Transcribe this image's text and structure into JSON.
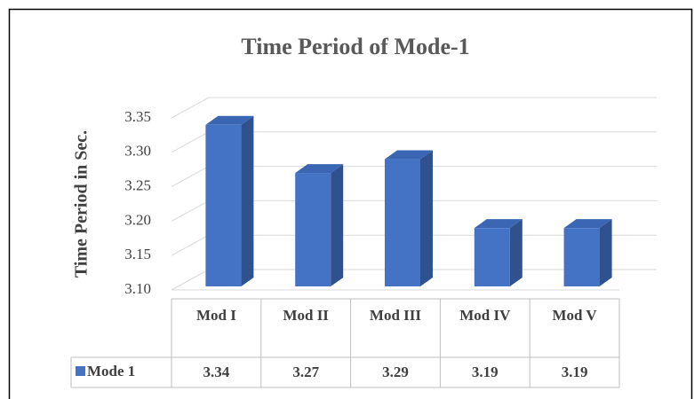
{
  "chart_data": {
    "type": "bar3d",
    "title": "Time Period of Mode-1",
    "y_label": "Time Period in Sec.",
    "categories": [
      "Mod I",
      "Mod II",
      "Mod III",
      "Mod IV",
      "Mod V"
    ],
    "series": [
      {
        "name": "Mode 1",
        "color": "#4472c4",
        "values": [
          3.34,
          3.27,
          3.29,
          3.19,
          3.19
        ]
      }
    ],
    "ylim": [
      3.1,
      3.35
    ],
    "yticks": [
      {
        "value": 3.1,
        "label": "3.10"
      },
      3.15,
      {
        "value": 3.2,
        "label": "3.20"
      },
      3.25,
      {
        "value": 3.3,
        "label": "3.30"
      },
      3.35
    ],
    "grid": true,
    "data_table": true
  }
}
